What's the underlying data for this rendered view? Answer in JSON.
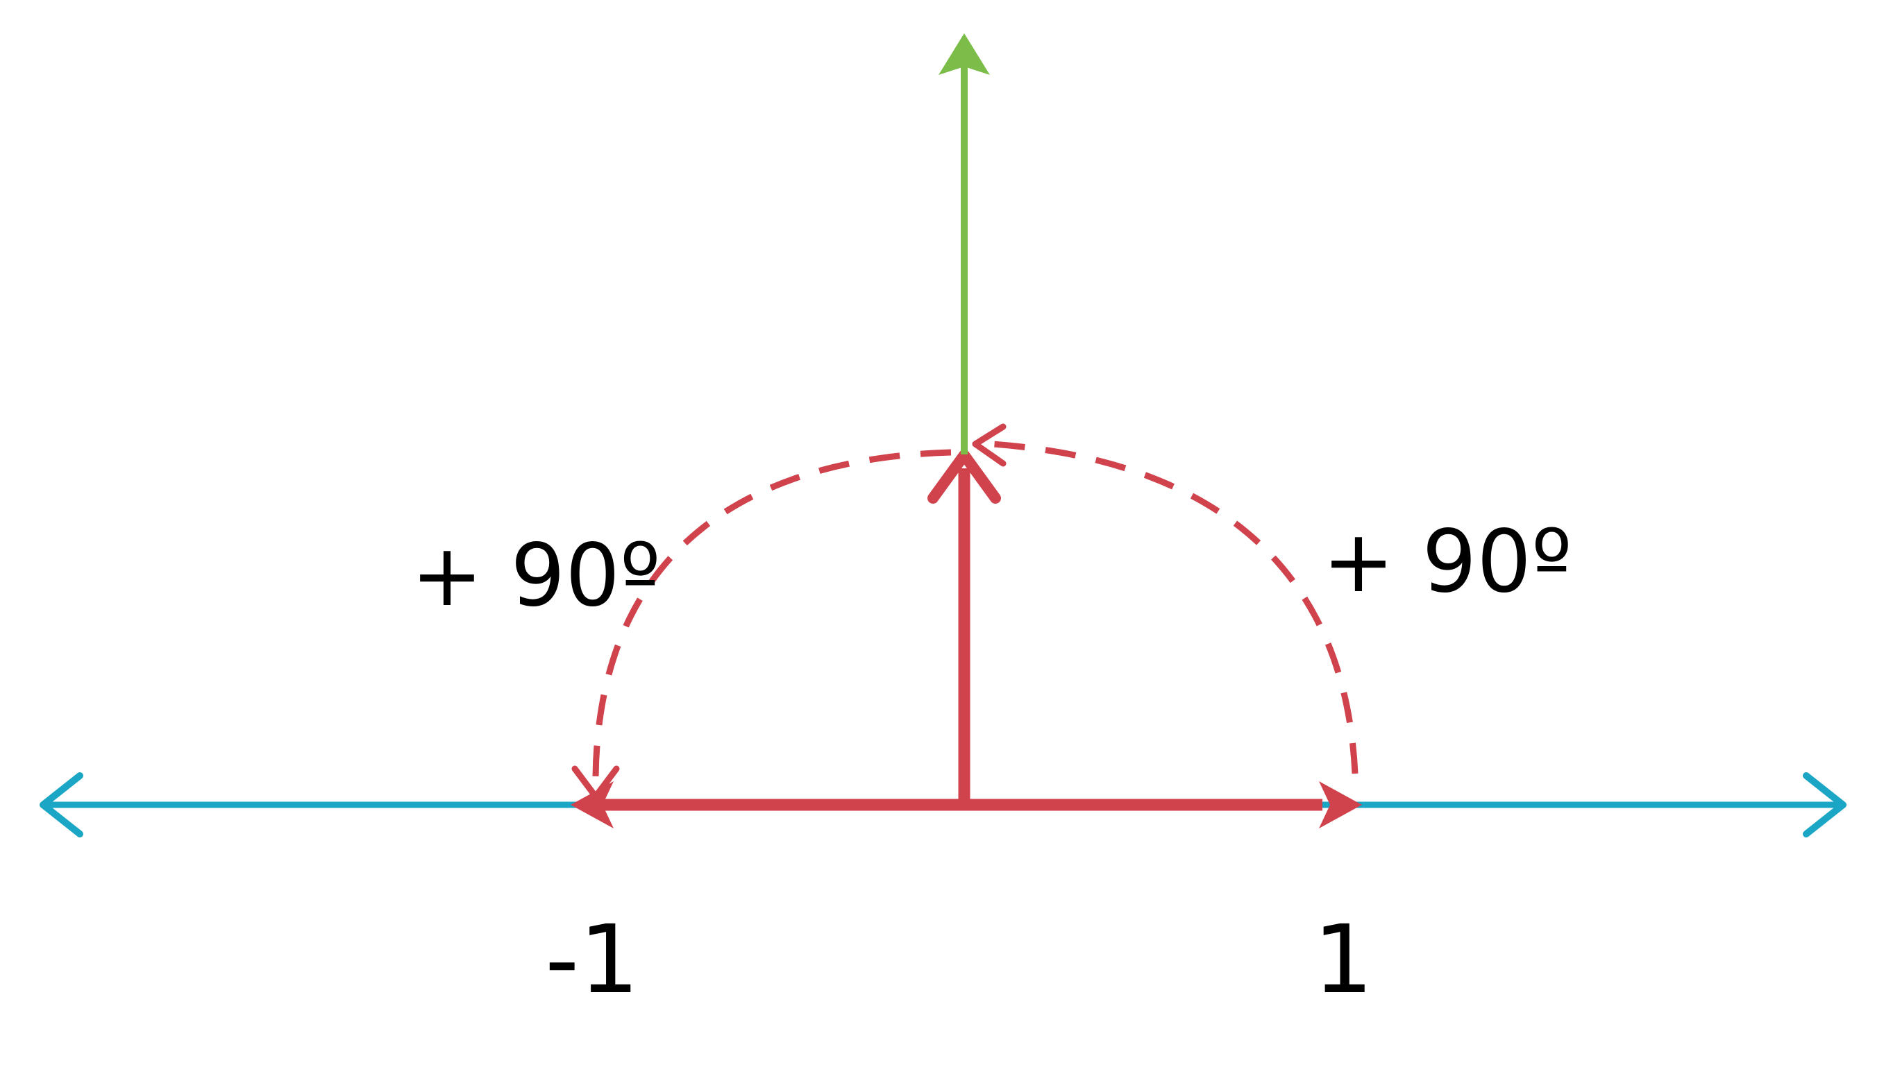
{
  "diagram": {
    "angle_labels": {
      "left": "+ 90º",
      "right": "+ 90º"
    },
    "tick_labels": {
      "negative": "-1",
      "positive": "1"
    },
    "colors": {
      "number_line": "#1aa6c4",
      "unit_vectors": "#d0424c",
      "result_vector": "#7cbd4a",
      "rotation_arcs": "#d0424c"
    }
  }
}
